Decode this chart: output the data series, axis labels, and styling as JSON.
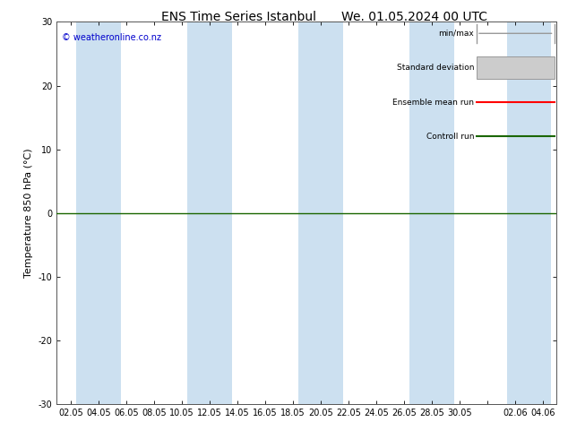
{
  "title": "ENS Time Series Istanbul",
  "title2": "We. 01.05.2024 00 UTC",
  "ylabel": "Temperature 850 hPa (°C)",
  "ylim": [
    -30,
    30
  ],
  "yticks": [
    -30,
    -20,
    -10,
    0,
    10,
    20,
    30
  ],
  "xtick_labels": [
    "02.05",
    "04.05",
    "06.05",
    "08.05",
    "10.05",
    "12.05",
    "14.05",
    "16.05",
    "18.05",
    "20.05",
    "22.05",
    "24.05",
    "26.05",
    "28.05",
    "30.05",
    "",
    "02.06",
    "04.06"
  ],
  "watermark": "© weatheronline.co.nz",
  "watermark_color": "#0000cc",
  "bg_color": "#ffffff",
  "plot_bg_color": "#ffffff",
  "band_color": "#cce0f0",
  "zero_line_color": "#1a6600",
  "legend_items": [
    "min/max",
    "Standard deviation",
    "Ensemble mean run",
    "Controll run"
  ],
  "title_fontsize": 10,
  "tick_fontsize": 7,
  "ylabel_fontsize": 8
}
